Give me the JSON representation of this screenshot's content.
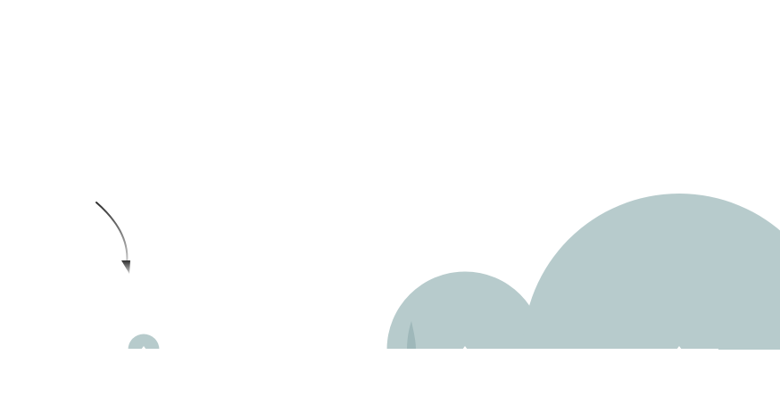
{
  "chart_data": {
    "type": "area",
    "title": "",
    "xlabel": "",
    "ylabel": "",
    "legend": false,
    "grid": false,
    "series": [
      {
        "values": [
          {
            "x": 1,
            "y": 0.1
          },
          {
            "x": 2,
            "y": 0.0
          },
          {
            "x": 3,
            "y": 0.0
          },
          {
            "x": 4,
            "y": 0.5
          },
          {
            "x": 5,
            "y": 0.0
          },
          {
            "x": 6,
            "y": 1.0
          }
        ]
      }
    ],
    "colors": {
      "fill": "#b7cbcc",
      "fill_overlap": "#9fb8ba",
      "stroke": "#ffffff",
      "arrow_dark": "#2f2f2f",
      "arrow_light": "#cfcfcf"
    },
    "annotation": {
      "arrow": true
    }
  }
}
